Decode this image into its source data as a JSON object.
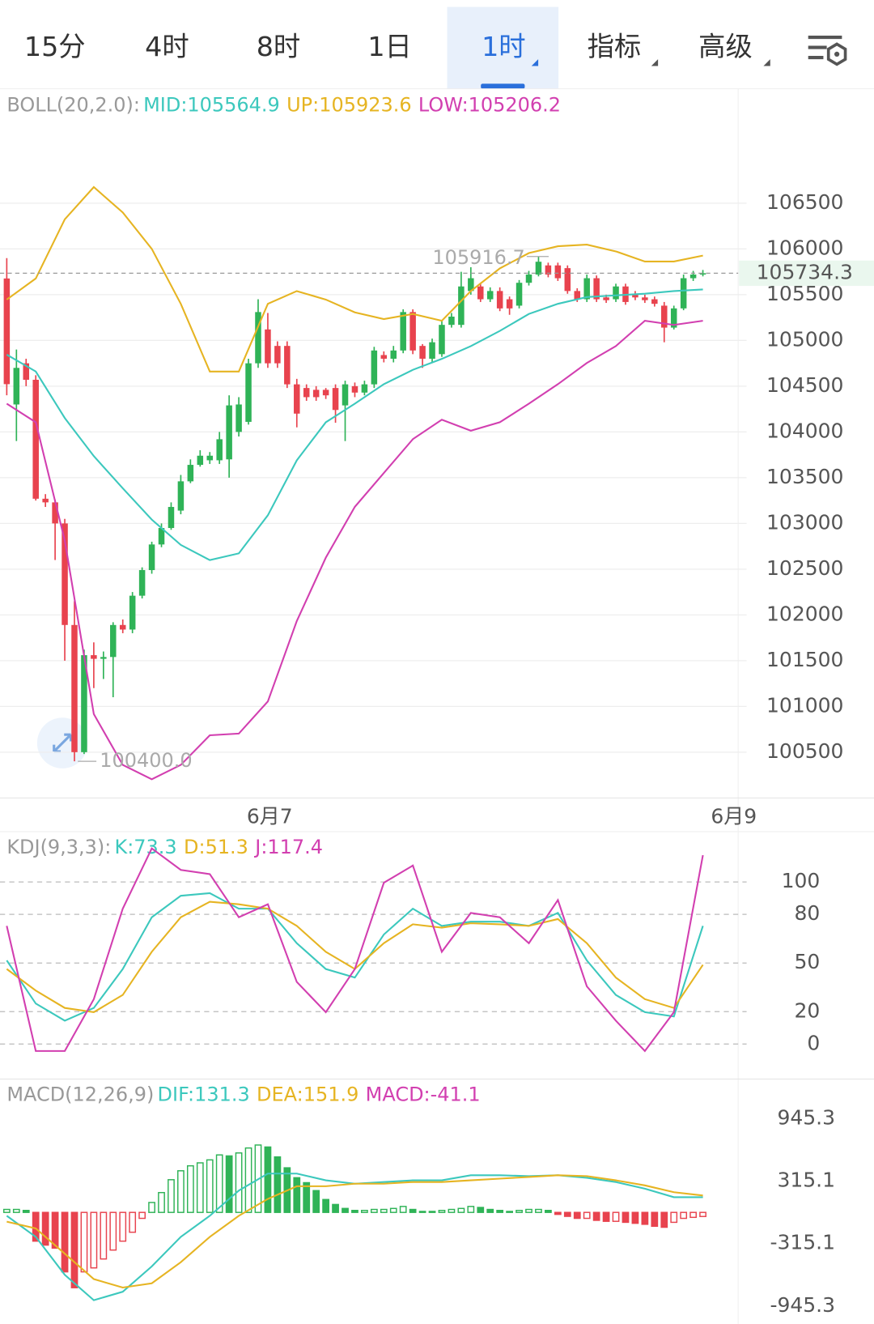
{
  "header": {
    "tabs": [
      "15分",
      "4时",
      "8时",
      "1日",
      "1时",
      "指标",
      "高级"
    ],
    "active": 4
  },
  "chart_data": [
    {
      "type": "candlestick",
      "title": "BOLL(20,2.0):",
      "up_color": "#2fb357",
      "down_color": "#e8434e",
      "xlim": [
        -0.7,
        75.65
      ],
      "ylim": [
        100000,
        107750
      ],
      "yticks": [
        100500,
        101000,
        101500,
        102000,
        102500,
        103000,
        103500,
        104000,
        104500,
        105000,
        105500,
        106000,
        106500
      ],
      "xticks": [
        {
          "value": 27.2,
          "label": "6月7"
        },
        {
          "value": 75.2,
          "label": "6月9"
        }
      ],
      "grid": true,
      "grid_style": "solid",
      "x": [
        0,
        1,
        2,
        3,
        4,
        5,
        6,
        7,
        8,
        9,
        10,
        11,
        12,
        13,
        14,
        15,
        16,
        17,
        18,
        19,
        20,
        21,
        22,
        23,
        24,
        25,
        26,
        27,
        28,
        29,
        30,
        31,
        32,
        33,
        34,
        35,
        36,
        37,
        38,
        39,
        40,
        41,
        42,
        43,
        44,
        45,
        46,
        47,
        48,
        49,
        50,
        51,
        52,
        53,
        54,
        55,
        56,
        57,
        58,
        59,
        60,
        61,
        62,
        63,
        64,
        65,
        66,
        67,
        68,
        69,
        70,
        71,
        72
      ],
      "open": [
        105677,
        104300,
        104750,
        104570,
        103270,
        103230,
        103000,
        101890,
        100500,
        101560,
        101520,
        101540,
        101890,
        101840,
        102210,
        102490,
        102770,
        102950,
        103140,
        103460,
        103640,
        103690,
        103690,
        103700,
        104000,
        104110,
        104750,
        105120,
        104940,
        104940,
        104520,
        104480,
        104460,
        104460,
        104480,
        104290,
        104500,
        104430,
        104520,
        104840,
        104800,
        104890,
        105310,
        104940,
        104800,
        104850,
        105170,
        105170,
        105540,
        105590,
        105450,
        105540,
        105450,
        105380,
        105630,
        105720,
        105820,
        105820,
        105790,
        105540,
        105450,
        105680,
        105470,
        105450,
        105590,
        105510,
        105470,
        105450,
        105380,
        105140,
        105350,
        105680,
        105720
      ],
      "high": [
        105900,
        104900,
        104800,
        104620,
        103320,
        103260,
        103050,
        102150,
        101620,
        101700,
        101600,
        101920,
        101950,
        102250,
        102520,
        102800,
        103000,
        103230,
        103530,
        103700,
        103800,
        103780,
        104000,
        104400,
        104380,
        104800,
        105450,
        105300,
        104990,
        104990,
        104580,
        104520,
        104500,
        104480,
        104520,
        104560,
        104540,
        104560,
        104930,
        104880,
        104940,
        105340,
        105340,
        104960,
        105020,
        105210,
        105300,
        105750,
        105800,
        105630,
        105580,
        105580,
        105480,
        105660,
        105760,
        105916.7,
        105850,
        105850,
        105820,
        105570,
        105720,
        105710,
        105500,
        105620,
        105620,
        105540,
        105500,
        105480,
        105420,
        105380,
        105720,
        105760,
        105770
      ],
      "low": [
        104400,
        103900,
        104500,
        103250,
        103180,
        102600,
        101500,
        100400,
        100480,
        101200,
        101300,
        101100,
        101800,
        101800,
        102180,
        102450,
        102740,
        102930,
        103100,
        103440,
        103620,
        103650,
        103650,
        103500,
        103950,
        104080,
        104700,
        104700,
        104700,
        104480,
        104050,
        104340,
        104340,
        104360,
        104100,
        103900,
        104380,
        104400,
        104480,
        104760,
        104760,
        104860,
        104850,
        104700,
        104760,
        104820,
        105140,
        105140,
        105500,
        105420,
        105420,
        105320,
        105280,
        105350,
        105600,
        105700,
        105690,
        105650,
        105510,
        105420,
        105420,
        105420,
        105410,
        105420,
        105390,
        105440,
        105410,
        105370,
        104980,
        105120,
        105330,
        105650,
        105700
      ],
      "close": [
        104522,
        104700,
        104570,
        103270,
        103230,
        103000,
        101890,
        100500,
        101560,
        101520,
        101540,
        101890,
        101840,
        102210,
        102490,
        102770,
        102950,
        103180,
        103460,
        103640,
        103740,
        103740,
        103920,
        104290,
        104300,
        104750,
        105310,
        104750,
        104750,
        104520,
        104200,
        104380,
        104380,
        104400,
        104240,
        104520,
        104430,
        104520,
        104890,
        104800,
        104890,
        105310,
        104890,
        104800,
        104980,
        105170,
        105260,
        105590,
        105680,
        105450,
        105540,
        105350,
        105350,
        105630,
        105720,
        105860,
        105720,
        105680,
        105540,
        105450,
        105680,
        105450,
        105440,
        105590,
        105420,
        105470,
        105440,
        105400,
        105140,
        105350,
        105680,
        105720,
        105734.3
      ],
      "series": [
        {
          "name": "MID:105564.9",
          "color": "#3cc8bd",
          "x": [
            0,
            3,
            6,
            9,
            12,
            15,
            18,
            21,
            24,
            27,
            30,
            33,
            36,
            39,
            42,
            45,
            48,
            51,
            54,
            57,
            60,
            63,
            66,
            69,
            72
          ],
          "values": [
            104845,
            104660,
            104152,
            103736,
            103384,
            103042,
            102765,
            102599,
            102673,
            103089,
            103690,
            104106,
            104309,
            104522,
            104679,
            104799,
            104938,
            105104,
            105289,
            105400,
            105474,
            105492,
            105511,
            105539,
            105557
          ]
        },
        {
          "name": "UP:105923.6",
          "color": "#e6b422",
          "x": [
            0,
            3,
            6,
            9,
            12,
            15,
            18,
            21,
            24,
            27,
            30,
            33,
            36,
            39,
            42,
            45,
            48,
            51,
            54,
            57,
            60,
            63,
            66,
            69,
            72
          ],
          "values": [
            105446,
            105677,
            106324,
            106676,
            106398,
            106001,
            105400,
            104660,
            104660,
            105400,
            105539,
            105446,
            105307,
            105233,
            105289,
            105215,
            105539,
            105788,
            105955,
            106029,
            106047,
            105973,
            105862,
            105862,
            105927
          ]
        },
        {
          "name": "LOW:105206.2",
          "color": "#d23fb0",
          "x": [
            0,
            3,
            6,
            9,
            12,
            15,
            18,
            21,
            24,
            27,
            30,
            33,
            36,
            39,
            42,
            45,
            48,
            51,
            54,
            57,
            60,
            63,
            66,
            69,
            72
          ],
          "values": [
            104309,
            104106,
            102811,
            100916,
            100361,
            100204,
            100361,
            100685,
            100703,
            101055,
            101933,
            102626,
            103181,
            103551,
            103921,
            104133,
            104013,
            104106,
            104309,
            104522,
            104753,
            104938,
            105215,
            105169,
            105215
          ]
        }
      ],
      "annotations": [
        {
          "value": 105916.7,
          "x": 55,
          "side": "left"
        },
        {
          "value": 100400,
          "label": "100400.0",
          "x": 7,
          "side": "right"
        }
      ],
      "last_price": 105734.3
    },
    {
      "type": "line",
      "title": "KDJ(9,3,3):",
      "xlim": [
        -0.7,
        75.65
      ],
      "ylim": [
        -20,
        131
      ],
      "yticks": [
        0,
        20,
        50,
        80,
        100
      ],
      "grid": true,
      "grid_style": "dashed",
      "series": [
        {
          "name": "K:73.3",
          "color": "#3cc8bd",
          "x": [
            0,
            3,
            6,
            9,
            12,
            15,
            18,
            21,
            24,
            27,
            30,
            33,
            36,
            39,
            42,
            45,
            48,
            51,
            54,
            57,
            60,
            63,
            66,
            69,
            72
          ],
          "values": [
            51.6,
            25,
            14.4,
            22.3,
            46.3,
            78.2,
            91.5,
            93.1,
            83.5,
            83.5,
            62.2,
            46.3,
            41,
            67.6,
            83.5,
            72.9,
            75.5,
            75.5,
            72.9,
            80.9,
            51.6,
            30.3,
            19.7,
            17,
            72.9
          ]
        },
        {
          "name": "D:51.3",
          "color": "#e6b422",
          "x": [
            0,
            3,
            6,
            9,
            12,
            15,
            18,
            21,
            24,
            27,
            30,
            33,
            36,
            39,
            42,
            45,
            48,
            51,
            54,
            57,
            60,
            63,
            66,
            69,
            72
          ],
          "values": [
            46.3,
            33,
            22.3,
            19.7,
            30.3,
            56.9,
            78.2,
            87.8,
            86.2,
            83.5,
            72.9,
            56.9,
            46.3,
            62.2,
            73.9,
            71.8,
            74.5,
            73.9,
            72.9,
            77.1,
            62.2,
            41,
            27.7,
            22.3,
            48.9
          ]
        },
        {
          "name": "J:117.4",
          "color": "#d23fb0",
          "x": [
            0,
            3,
            6,
            9,
            12,
            15,
            18,
            21,
            24,
            27,
            30,
            33,
            36,
            39,
            42,
            45,
            48,
            51,
            54,
            57,
            60,
            63,
            66,
            69,
            72
          ],
          "values": [
            72.9,
            -4.3,
            -4.3,
            27.7,
            83.5,
            120.7,
            107.4,
            104.8,
            78.2,
            86.2,
            38.3,
            19.7,
            46.3,
            99.5,
            110.1,
            56.9,
            80.9,
            78.2,
            62.2,
            88.8,
            35.6,
            14.4,
            -4.3,
            19.7,
            116.5
          ]
        }
      ]
    },
    {
      "type": "line",
      "title": "MACD(12,26,9)",
      "xlim": [
        -0.7,
        75.65
      ],
      "ylim": [
        -1099,
        1329
      ],
      "yticks": [
        -945.3,
        -315.1,
        315.1,
        945.3
      ],
      "grid": false,
      "up_color": "#2fb357",
      "down_color": "#e8434e",
      "series": [
        {
          "name": "DIF:131.3",
          "color": "#3cc8bd",
          "x": [
            0,
            3,
            6,
            9,
            12,
            15,
            18,
            21,
            24,
            27,
            30,
            33,
            36,
            39,
            42,
            45,
            48,
            51,
            54,
            57,
            60,
            63,
            66,
            69,
            72
          ],
          "values": [
            -34,
            -247,
            -630,
            -886,
            -801,
            -545,
            -247,
            -34,
            221,
            392,
            392,
            324,
            290,
            307,
            324,
            324,
            375,
            375,
            366,
            375,
            349,
            307,
            239,
            153,
            153
          ]
        },
        {
          "name": "DEA:151.9",
          "color": "#e6b422",
          "x": [
            0,
            3,
            6,
            9,
            12,
            15,
            18,
            21,
            24,
            27,
            30,
            33,
            36,
            39,
            42,
            45,
            48,
            51,
            54,
            57,
            60,
            63,
            66,
            69,
            72
          ],
          "values": [
            -94,
            -162,
            -417,
            -673,
            -758,
            -716,
            -503,
            -247,
            -34,
            136,
            264,
            264,
            290,
            290,
            307,
            307,
            324,
            341,
            358,
            375,
            366,
            324,
            273,
            204,
            170
          ]
        },
        {
          "name": "MACD:-41.1",
          "color": "#d23fb0",
          "kind": "bar",
          "x": [
            0,
            1,
            2,
            3,
            4,
            5,
            6,
            7,
            8,
            9,
            10,
            11,
            12,
            13,
            14,
            15,
            16,
            17,
            18,
            19,
            20,
            21,
            22,
            23,
            24,
            25,
            26,
            27,
            28,
            29,
            30,
            31,
            32,
            33,
            34,
            35,
            36,
            37,
            38,
            39,
            40,
            41,
            42,
            43,
            44,
            45,
            46,
            47,
            48,
            49,
            50,
            51,
            52,
            53,
            54,
            55,
            56,
            57,
            58,
            59,
            60,
            61,
            62,
            63,
            64,
            65,
            66,
            67,
            68,
            69,
            70,
            71,
            72
          ],
          "values": [
            30,
            30,
            20,
            -290,
            -330,
            -360,
            -600,
            -760,
            -600,
            -560,
            -470,
            -380,
            -290,
            -200,
            -60,
            100,
            200,
            330,
            420,
            470,
            500,
            530,
            580,
            570,
            600,
            650,
            680,
            660,
            560,
            450,
            350,
            300,
            220,
            130,
            80,
            40,
            20,
            20,
            30,
            30,
            40,
            60,
            30,
            10,
            10,
            20,
            30,
            40,
            60,
            50,
            30,
            20,
            10,
            20,
            30,
            30,
            20,
            -20,
            -40,
            -60,
            -60,
            -80,
            -90,
            -90,
            -100,
            -110,
            -120,
            -140,
            -150,
            -100,
            -60,
            -50,
            -41.1
          ]
        }
      ]
    }
  ]
}
